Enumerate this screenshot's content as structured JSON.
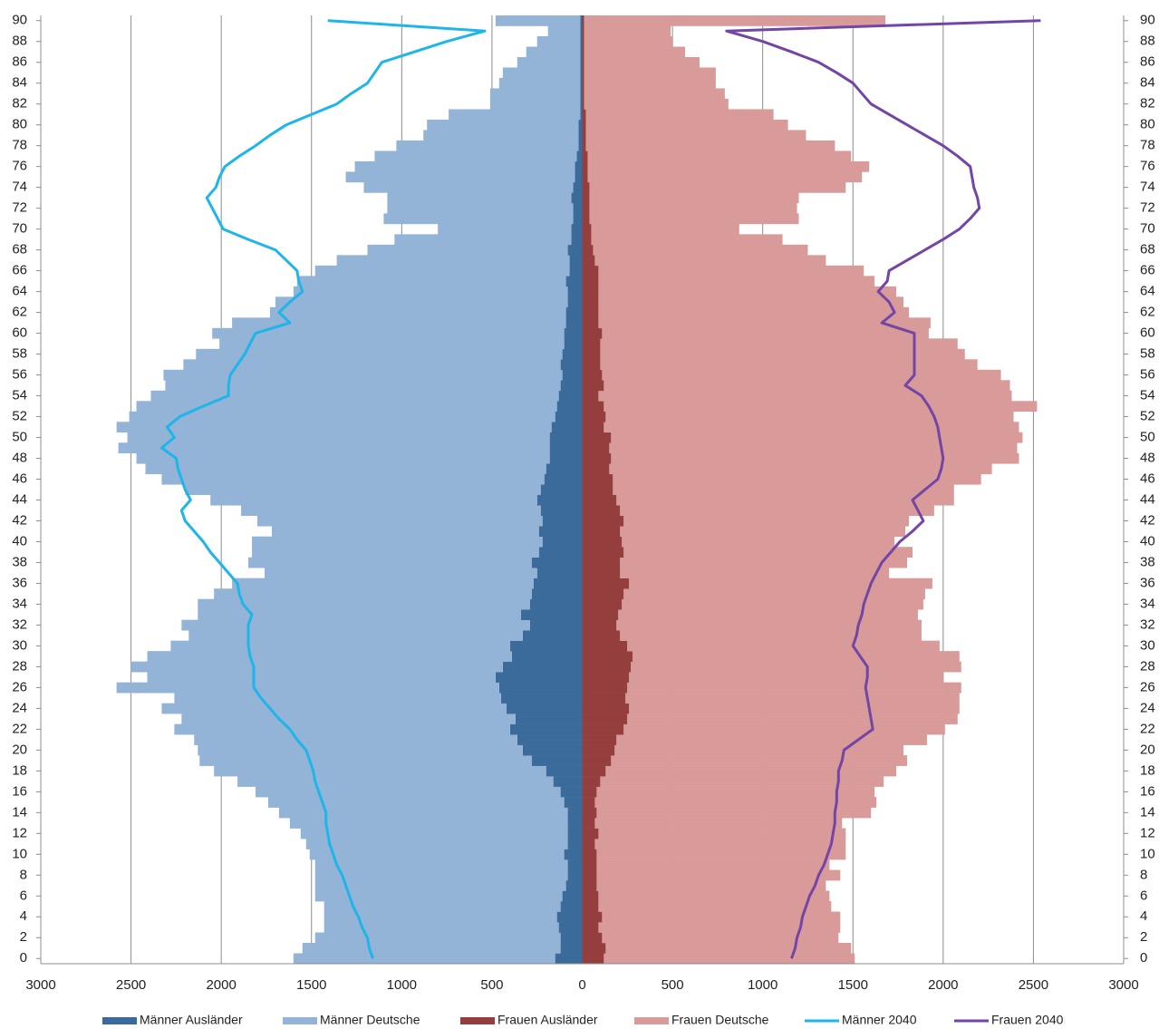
{
  "chart_data": {
    "type": "bar",
    "orientation": "horizontal",
    "stacked": true,
    "grid": true,
    "legend": "bottom",
    "categories": [
      0,
      null,
      2,
      null,
      4,
      null,
      6,
      null,
      8,
      null,
      10,
      null,
      12,
      null,
      14,
      null,
      16,
      null,
      18,
      null,
      20,
      null,
      22,
      null,
      24,
      null,
      26,
      null,
      28,
      null,
      30,
      null,
      32,
      null,
      34,
      null,
      36,
      null,
      38,
      null,
      40,
      null,
      42,
      null,
      44,
      null,
      46,
      null,
      48,
      null,
      50,
      null,
      52,
      null,
      54,
      null,
      56,
      null,
      58,
      null,
      60,
      null,
      62,
      null,
      64,
      null,
      66,
      null,
      68,
      null,
      70,
      null,
      72,
      null,
      74,
      null,
      76,
      null,
      78,
      null,
      80,
      null,
      82,
      null,
      84,
      null,
      86,
      null,
      88,
      null,
      90
    ],
    "xlim": [
      -3000,
      3000
    ],
    "xticks": [
      {
        "value": -3000,
        "label": "3000"
      },
      {
        "value": -2500,
        "label": "2500"
      },
      {
        "value": -2000,
        "label": "2000"
      },
      {
        "value": -1500,
        "label": "1500"
      },
      {
        "value": -1000,
        "label": "1000"
      },
      {
        "value": -500,
        "label": "500"
      },
      0,
      500,
      1000,
      1500,
      2000,
      2500,
      3000
    ],
    "series": [
      {
        "name": "Männer Ausländer",
        "type": "bar",
        "color": "#3a6b9b",
        "values": [
          -150,
          -120,
          -120,
          -130,
          -140,
          -120,
          -110,
          -90,
          -80,
          -80,
          -100,
          -80,
          -80,
          -80,
          -80,
          -100,
          -120,
          -160,
          -200,
          -280,
          -330,
          -360,
          -400,
          -370,
          -420,
          -450,
          -460,
          -480,
          -440,
          -390,
          -400,
          -330,
          -290,
          -340,
          -290,
          -280,
          -270,
          -250,
          -280,
          -240,
          -220,
          -240,
          -220,
          -230,
          -250,
          -230,
          -210,
          -200,
          -180,
          -180,
          -180,
          -170,
          -150,
          -140,
          -130,
          -120,
          -110,
          -120,
          -110,
          -100,
          -100,
          -90,
          -90,
          -80,
          -80,
          -90,
          -70,
          -70,
          -80,
          -60,
          -60,
          -50,
          -50,
          -60,
          -50,
          -40,
          -40,
          -30,
          -20,
          -20,
          -20,
          -10,
          -10,
          -10,
          -10,
          -10,
          -10,
          -10,
          -10,
          -10,
          -10
        ]
      },
      {
        "name": "Männer Deutsche",
        "type": "bar",
        "color": "#93b3d7",
        "values": [
          -1450,
          -1430,
          -1360,
          -1300,
          -1290,
          -1310,
          -1370,
          -1390,
          -1400,
          -1400,
          -1410,
          -1450,
          -1480,
          -1540,
          -1600,
          -1640,
          -1690,
          -1750,
          -1840,
          -1840,
          -1800,
          -1790,
          -1860,
          -1850,
          -1910,
          -1810,
          -2120,
          -1930,
          -2060,
          -2020,
          -1880,
          -1850,
          -1930,
          -1790,
          -1840,
          -1760,
          -1670,
          -1510,
          -1570,
          -1590,
          -1610,
          -1480,
          -1580,
          -1660,
          -1810,
          -1970,
          -2120,
          -2220,
          -2290,
          -2390,
          -2340,
          -2410,
          -2360,
          -2330,
          -2260,
          -2190,
          -2210,
          -2090,
          -2030,
          -1910,
          -1950,
          -1850,
          -1640,
          -1620,
          -1520,
          -1490,
          -1410,
          -1290,
          -1110,
          -980,
          -740,
          -1050,
          -1030,
          -1020,
          -1160,
          -1270,
          -1220,
          -1120,
          -1010,
          -860,
          -840,
          -730,
          -500,
          -500,
          -450,
          -430,
          -350,
          -300,
          -240,
          -180,
          -470
        ]
      },
      {
        "name": "Frauen Ausländer",
        "type": "bar",
        "color": "#953e3e",
        "values": [
          120,
          130,
          110,
          90,
          110,
          90,
          90,
          80,
          80,
          80,
          80,
          70,
          90,
          70,
          80,
          70,
          80,
          100,
          130,
          160,
          180,
          190,
          230,
          250,
          260,
          240,
          250,
          260,
          270,
          280,
          250,
          210,
          190,
          200,
          220,
          230,
          260,
          210,
          210,
          230,
          220,
          210,
          230,
          210,
          190,
          170,
          170,
          150,
          160,
          150,
          160,
          120,
          130,
          120,
          90,
          120,
          110,
          100,
          100,
          100,
          110,
          90,
          90,
          90,
          90,
          90,
          90,
          70,
          60,
          50,
          50,
          40,
          40,
          40,
          40,
          30,
          30,
          30,
          20,
          20,
          20,
          20,
          10,
          10,
          10,
          10,
          10,
          10,
          10,
          10,
          10
        ]
      },
      {
        "name": "Frauen Deutsche",
        "type": "bar",
        "color": "#d99a9a",
        "values": [
          1390,
          1360,
          1310,
          1340,
          1320,
          1290,
          1280,
          1270,
          1350,
          1290,
          1380,
          1390,
          1370,
          1370,
          1520,
          1560,
          1540,
          1570,
          1610,
          1640,
          1600,
          1720,
          1780,
          1830,
          1830,
          1850,
          1850,
          1740,
          1830,
          1810,
          1730,
          1670,
          1690,
          1660,
          1670,
          1670,
          1680,
          1490,
          1590,
          1600,
          1510,
          1580,
          1580,
          1740,
          1870,
          1890,
          2040,
          2120,
          2260,
          2260,
          2280,
          2300,
          2260,
          2400,
          2290,
          2250,
          2210,
          2090,
          2020,
          1980,
          1810,
          1840,
          1720,
          1690,
          1650,
          1530,
          1470,
          1280,
          1190,
          1060,
          820,
          1160,
          1150,
          1160,
          1420,
          1520,
          1560,
          1460,
          1380,
          1220,
          1120,
          1040,
          800,
          780,
          730,
          730,
          640,
          560,
          490,
          480,
          1670
        ]
      },
      {
        "name": "Männer 2040",
        "type": "line",
        "color": "#1eb5e9",
        "values": [
          -1160,
          -1180,
          -1190,
          -1220,
          -1240,
          -1270,
          -1290,
          -1310,
          -1330,
          -1360,
          -1380,
          -1400,
          -1410,
          -1420,
          -1420,
          -1440,
          -1460,
          -1480,
          -1490,
          -1510,
          -1530,
          -1580,
          -1620,
          -1680,
          -1730,
          -1780,
          -1820,
          -1820,
          -1820,
          -1840,
          -1850,
          -1850,
          -1850,
          -1830,
          -1880,
          -1900,
          -1910,
          -1960,
          -2010,
          -2060,
          -2100,
          -2150,
          -2200,
          -2220,
          -2170,
          -2200,
          -2220,
          -2240,
          -2250,
          -2330,
          -2260,
          -2300,
          -2230,
          -2100,
          -1960,
          -1960,
          -1950,
          -1910,
          -1870,
          -1840,
          -1810,
          -1620,
          -1680,
          -1620,
          -1550,
          -1570,
          -1580,
          -1640,
          -1700,
          -1850,
          -1990,
          -2020,
          -2050,
          -2080,
          -2030,
          -2010,
          -1980,
          -1900,
          -1810,
          -1730,
          -1640,
          -1500,
          -1360,
          -1280,
          -1190,
          -1150,
          -1110,
          -930,
          -750,
          -540,
          -1410
        ]
      },
      {
        "name": "Frauen 2040",
        "type": "line",
        "color": "#7245a6",
        "values": [
          1160,
          1180,
          1190,
          1210,
          1220,
          1240,
          1260,
          1290,
          1310,
          1340,
          1360,
          1380,
          1390,
          1400,
          1400,
          1410,
          1410,
          1420,
          1420,
          1440,
          1450,
          1530,
          1610,
          1600,
          1590,
          1580,
          1570,
          1580,
          1580,
          1540,
          1500,
          1520,
          1530,
          1550,
          1560,
          1580,
          1600,
          1630,
          1660,
          1710,
          1760,
          1830,
          1890,
          1860,
          1830,
          1900,
          1970,
          1990,
          2000,
          1990,
          1980,
          1970,
          1950,
          1920,
          1880,
          1790,
          1840,
          1840,
          1840,
          1840,
          1840,
          1660,
          1730,
          1700,
          1640,
          1690,
          1700,
          1800,
          1900,
          2000,
          2090,
          2150,
          2200,
          2190,
          2170,
          2160,
          2150,
          2080,
          2000,
          1900,
          1800,
          1700,
          1600,
          1550,
          1500,
          1410,
          1310,
          1160,
          1000,
          800,
          2540
        ]
      }
    ]
  }
}
